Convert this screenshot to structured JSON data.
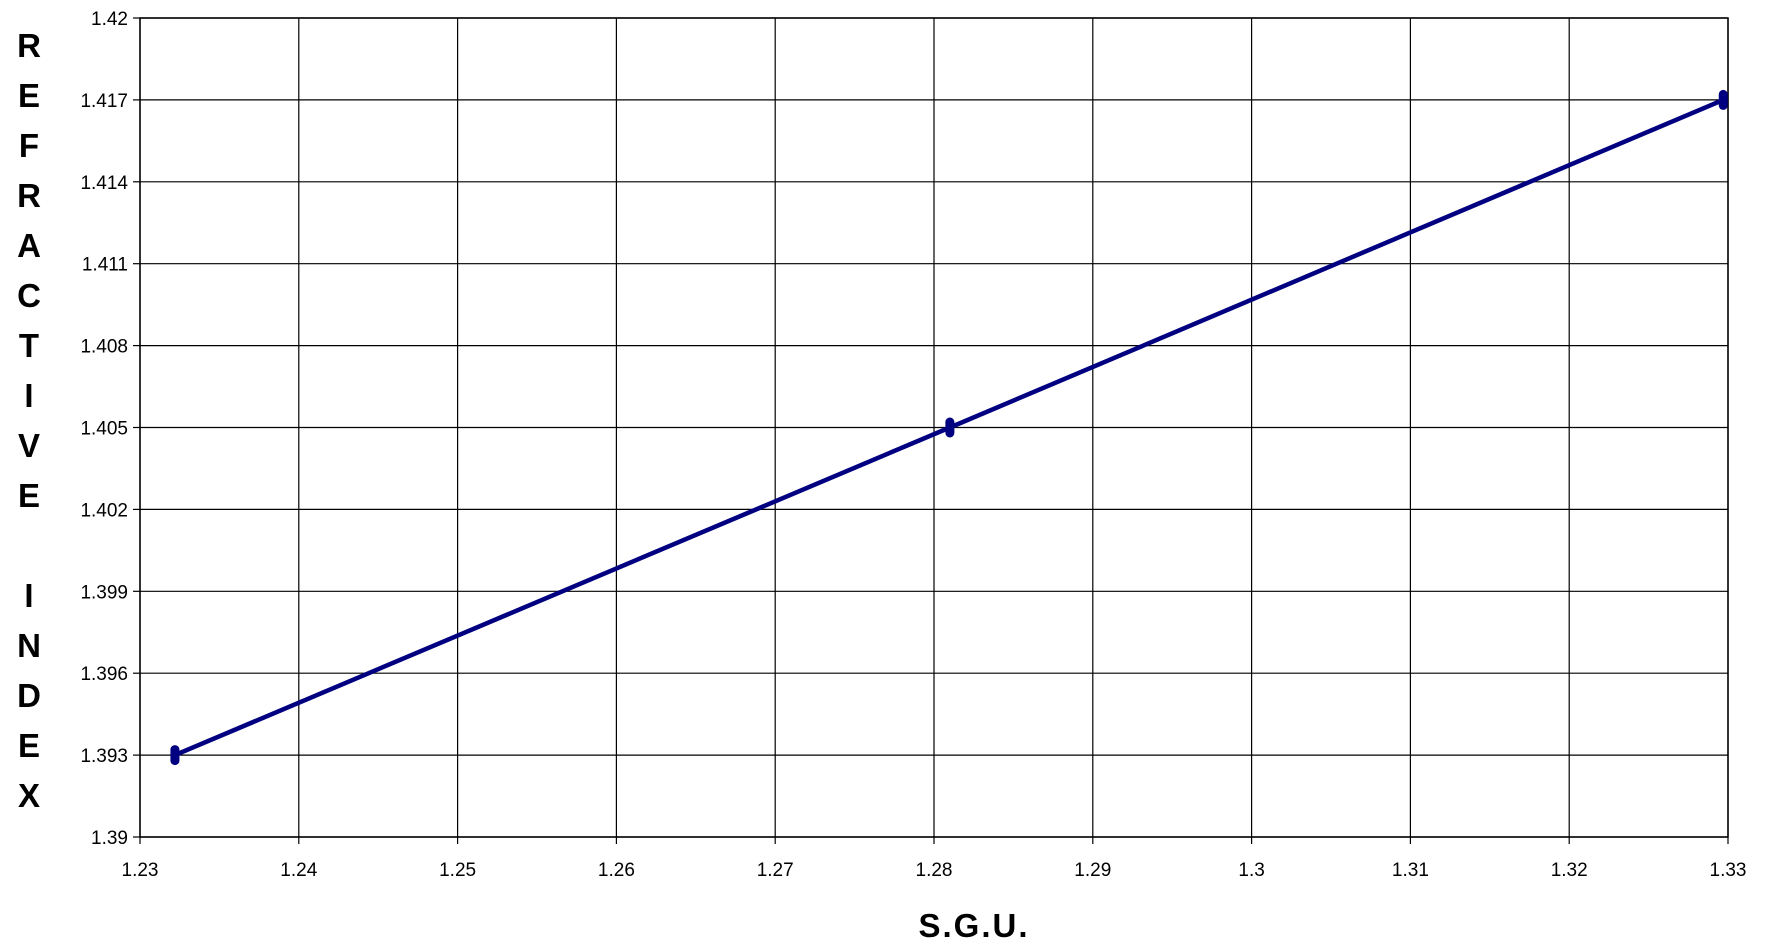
{
  "chart_data": {
    "type": "line",
    "title": "",
    "xlabel": "S.G.U.",
    "ylabel": "REFRACTIVE INDEX",
    "xlim": [
      1.23,
      1.33
    ],
    "ylim": [
      1.39,
      1.42
    ],
    "x_ticks": [
      "1.23",
      "1.24",
      "1.25",
      "1.26",
      "1.27",
      "1.28",
      "1.29",
      "1.3",
      "1.31",
      "1.32",
      "1.33"
    ],
    "y_ticks": [
      "1.39",
      "1.393",
      "1.396",
      "1.399",
      "1.402",
      "1.405",
      "1.408",
      "1.411",
      "1.414",
      "1.417",
      "1.42"
    ],
    "grid": true,
    "legend": "none",
    "series": [
      {
        "x": [
          1.2322,
          1.281,
          1.3297
        ],
        "y": [
          1.393,
          1.405,
          1.417
        ],
        "color": "#000080"
      }
    ]
  }
}
